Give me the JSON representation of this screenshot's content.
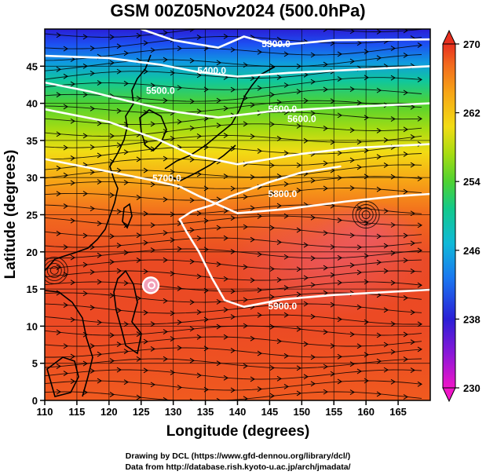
{
  "chart_data": {
    "type": "heatmap",
    "title": "GSM 00Z05Nov2024 (500.0hPa)",
    "xlabel": "Longitude (degrees)",
    "ylabel": "Latitude  (degrees)",
    "xlim": [
      110,
      170
    ],
    "ylim": [
      0,
      50
    ],
    "xticks": [
      "110",
      "115",
      "120",
      "125",
      "130",
      "135",
      "140",
      "145",
      "150",
      "155",
      "160",
      "165"
    ],
    "yticks": [
      "0",
      "5",
      "10",
      "15",
      "20",
      "25",
      "30",
      "35",
      "40",
      "45"
    ],
    "colorbar": {
      "min": 230,
      "max": 270,
      "ticks": [
        "230",
        "238",
        "246",
        "254",
        "262",
        "270"
      ]
    },
    "contours": [
      {
        "label": "5300.0",
        "points": [
          [
            125,
            50
          ],
          [
            130,
            48.5
          ],
          [
            137,
            47.5
          ],
          [
            141,
            49
          ],
          [
            146,
            47.8
          ],
          [
            155,
            48.5
          ],
          [
            170,
            48.6
          ]
        ]
      },
      {
        "label": "5400.0",
        "points": [
          [
            110,
            46.4
          ],
          [
            120,
            46.1
          ],
          [
            128,
            45.2
          ],
          [
            134,
            44.2
          ],
          [
            140,
            43.6
          ],
          [
            148,
            44.1
          ],
          [
            160,
            44.6
          ],
          [
            170,
            45
          ]
        ]
      },
      {
        "label": "5500.0",
        "points": [
          [
            110,
            42.8
          ],
          [
            117,
            41.6
          ],
          [
            123,
            40.3
          ],
          [
            130,
            38.9
          ],
          [
            137,
            38.1
          ],
          [
            145,
            38.9
          ],
          [
            157,
            39.5
          ],
          [
            170,
            40
          ]
        ]
      },
      {
        "label": "5600.0",
        "points": [
          [
            110,
            39.2
          ],
          [
            120,
            37.5
          ],
          [
            128,
            35
          ],
          [
            133,
            33
          ],
          [
            140,
            31.8
          ],
          [
            150,
            33.2
          ],
          [
            158,
            34
          ],
          [
            170,
            34.5
          ]
        ]
      },
      {
        "label": "5700.0",
        "points": [
          [
            110,
            32.5
          ],
          [
            120,
            30.8
          ],
          [
            127,
            29.6
          ],
          [
            131,
            28.8
          ],
          [
            134,
            27.5
          ],
          [
            140,
            25.2
          ],
          [
            148,
            25.8
          ],
          [
            157,
            26.8
          ],
          [
            165,
            27.5
          ],
          [
            170,
            27.8
          ]
        ]
      },
      {
        "label": "5800.0",
        "points": [
          [
            156,
            31.5
          ],
          [
            150,
            30.7
          ],
          [
            145,
            29.4
          ],
          [
            139,
            27.5
          ],
          [
            136,
            26.3
          ],
          [
            133,
            25.5
          ],
          [
            131,
            24.4
          ],
          [
            132,
            22.8
          ],
          [
            134,
            20
          ],
          [
            136,
            16.5
          ],
          [
            138,
            13.5
          ],
          [
            141,
            12.6
          ],
          [
            147,
            13.6
          ],
          [
            155,
            14.2
          ],
          [
            170,
            14.9
          ]
        ]
      }
    ],
    "contour_labels": [
      {
        "text": "5300.0",
        "x": 146,
        "y": 48.0
      },
      {
        "text": "5400.0",
        "x": 136,
        "y": 44.4
      },
      {
        "text": "5500.0",
        "x": 128,
        "y": 41.7
      },
      {
        "text": "5600.0",
        "x": 147,
        "y": 39.2
      },
      {
        "text": "5600.0",
        "x": 150,
        "y": 37.9
      },
      {
        "text": "5700.0",
        "x": 129,
        "y": 29.9
      },
      {
        "text": "5800.0",
        "x": 147,
        "y": 27.8
      },
      {
        "text": "5900.0",
        "x": 147,
        "y": 12.7
      }
    ],
    "cyclones": [
      {
        "x": 126.5,
        "y": 15.5
      },
      {
        "x": 160,
        "y": 25
      },
      {
        "x": 111.5,
        "y": 17.5
      }
    ],
    "credits": [
      "Drawing by DCL (https://www.gfd-dennou.org/library/dcl/)",
      "Data from http://database.rish.kyoto-u.ac.jp/arch/jmadata/"
    ]
  }
}
